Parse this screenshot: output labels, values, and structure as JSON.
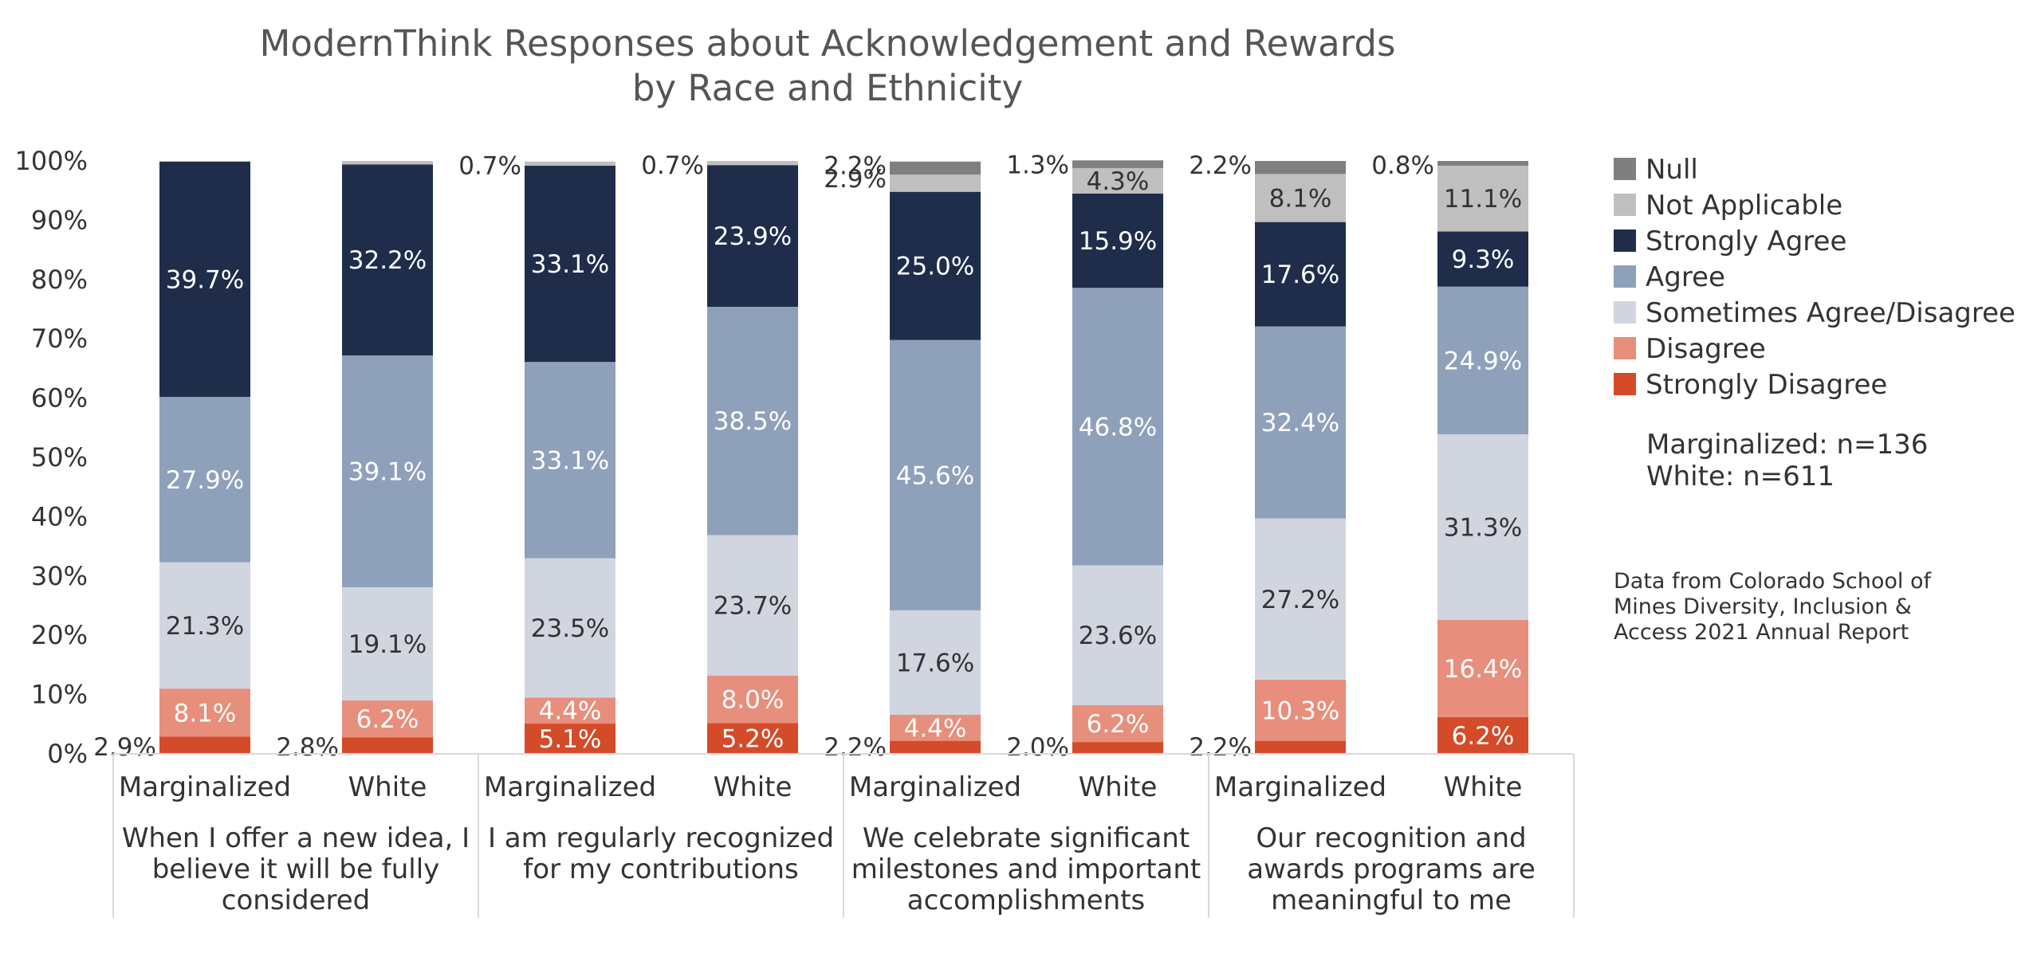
{
  "chart_data": {
    "type": "bar",
    "stacked": true,
    "title_lines": [
      "ModernThink Responses about Acknowledgement and Rewards",
      "by Race and Ethnicity"
    ],
    "y_ticks": [
      "0%",
      "10%",
      "20%",
      "30%",
      "40%",
      "50%",
      "60%",
      "70%",
      "80%",
      "90%",
      "100%"
    ],
    "ylim": [
      0,
      100
    ],
    "groups": [
      {
        "label_lines": [
          "When I offer a new idea, I",
          "believe it will be fully",
          "considered"
        ]
      },
      {
        "label_lines": [
          "I am regularly recognized",
          "for my contributions"
        ]
      },
      {
        "label_lines": [
          "We celebrate significant",
          "milestones and important",
          "accomplishments"
        ]
      },
      {
        "label_lines": [
          "Our recognition and",
          "awards programs are",
          "meaningful to me"
        ]
      }
    ],
    "series_order": [
      "Strongly Disagree",
      "Disagree",
      "Sometimes Agree/Disagree",
      "Agree",
      "Strongly Agree",
      "Not Applicable",
      "Null"
    ],
    "legend_order": [
      "Null",
      "Not Applicable",
      "Strongly Agree",
      "Agree",
      "Sometimes Agree/Disagree",
      "Disagree",
      "Strongly Disagree"
    ],
    "colors": {
      "Null": "#7f7f7f",
      "Not Applicable": "#bfbfbf",
      "Strongly Agree": "#1f2d4b",
      "Agree": "#8fa0bb",
      "Sometimes Agree/Disagree": "#d0d5df",
      "Disagree": "#e88e7c",
      "Strongly Disagree": "#d44b2a"
    },
    "bars": [
      {
        "category": "Marginalized",
        "group": 0,
        "values": [
          2.9,
          8.1,
          21.3,
          27.9,
          39.7,
          0,
          0
        ],
        "labels": [
          "2.9%",
          "8.1%",
          "21.3%",
          "27.9%",
          "39.7%",
          "",
          ""
        ]
      },
      {
        "category": "White",
        "group": 0,
        "values": [
          2.8,
          6.2,
          19.1,
          39.1,
          32.2,
          0.6,
          0
        ],
        "labels": [
          "2.8%",
          "6.2%",
          "19.1%",
          "39.1%",
          "32.2%",
          "",
          ""
        ]
      },
      {
        "category": "Marginalized",
        "group": 1,
        "values": [
          5.1,
          4.4,
          23.5,
          33.1,
          33.1,
          0.7,
          0
        ],
        "labels": [
          "5.1%",
          "4.4%",
          "23.5%",
          "33.1%",
          "33.1%",
          "0.7%",
          ""
        ]
      },
      {
        "category": "White",
        "group": 1,
        "values": [
          5.2,
          8.0,
          23.7,
          38.5,
          23.9,
          0.7,
          0
        ],
        "labels": [
          "5.2%",
          "8.0%",
          "23.7%",
          "38.5%",
          "23.9%",
          "0.7%",
          ""
        ]
      },
      {
        "category": "Marginalized",
        "group": 2,
        "values": [
          2.2,
          4.4,
          17.6,
          45.6,
          25.0,
          2.9,
          2.2
        ],
        "labels": [
          "2.2%",
          "4.4%",
          "17.6%",
          "45.6%",
          "25.0%",
          "2.9%",
          "2.2%"
        ]
      },
      {
        "category": "White",
        "group": 2,
        "values": [
          2.0,
          6.2,
          23.6,
          46.8,
          15.9,
          4.3,
          1.3
        ],
        "labels": [
          "2.0%",
          "6.2%",
          "23.6%",
          "46.8%",
          "15.9%",
          "4.3%",
          "1.3%"
        ]
      },
      {
        "category": "Marginalized",
        "group": 3,
        "values": [
          2.2,
          10.3,
          27.2,
          32.4,
          17.6,
          8.1,
          2.2
        ],
        "labels": [
          "2.2%",
          "10.3%",
          "27.2%",
          "32.4%",
          "17.6%",
          "8.1%",
          "2.2%"
        ]
      },
      {
        "category": "White",
        "group": 3,
        "values": [
          6.2,
          16.4,
          31.3,
          24.9,
          9.3,
          11.1,
          0.8
        ],
        "labels": [
          "6.2%",
          "16.4%",
          "31.3%",
          "24.9%",
          "9.3%",
          "11.1%",
          "0.8%"
        ]
      }
    ],
    "notes": [
      "Marginalized: n=136",
      "White: n=611"
    ],
    "source_lines": [
      "Data from Colorado School of",
      "Mines Diversity, Inclusion &",
      "Access 2021 Annual Report"
    ]
  }
}
